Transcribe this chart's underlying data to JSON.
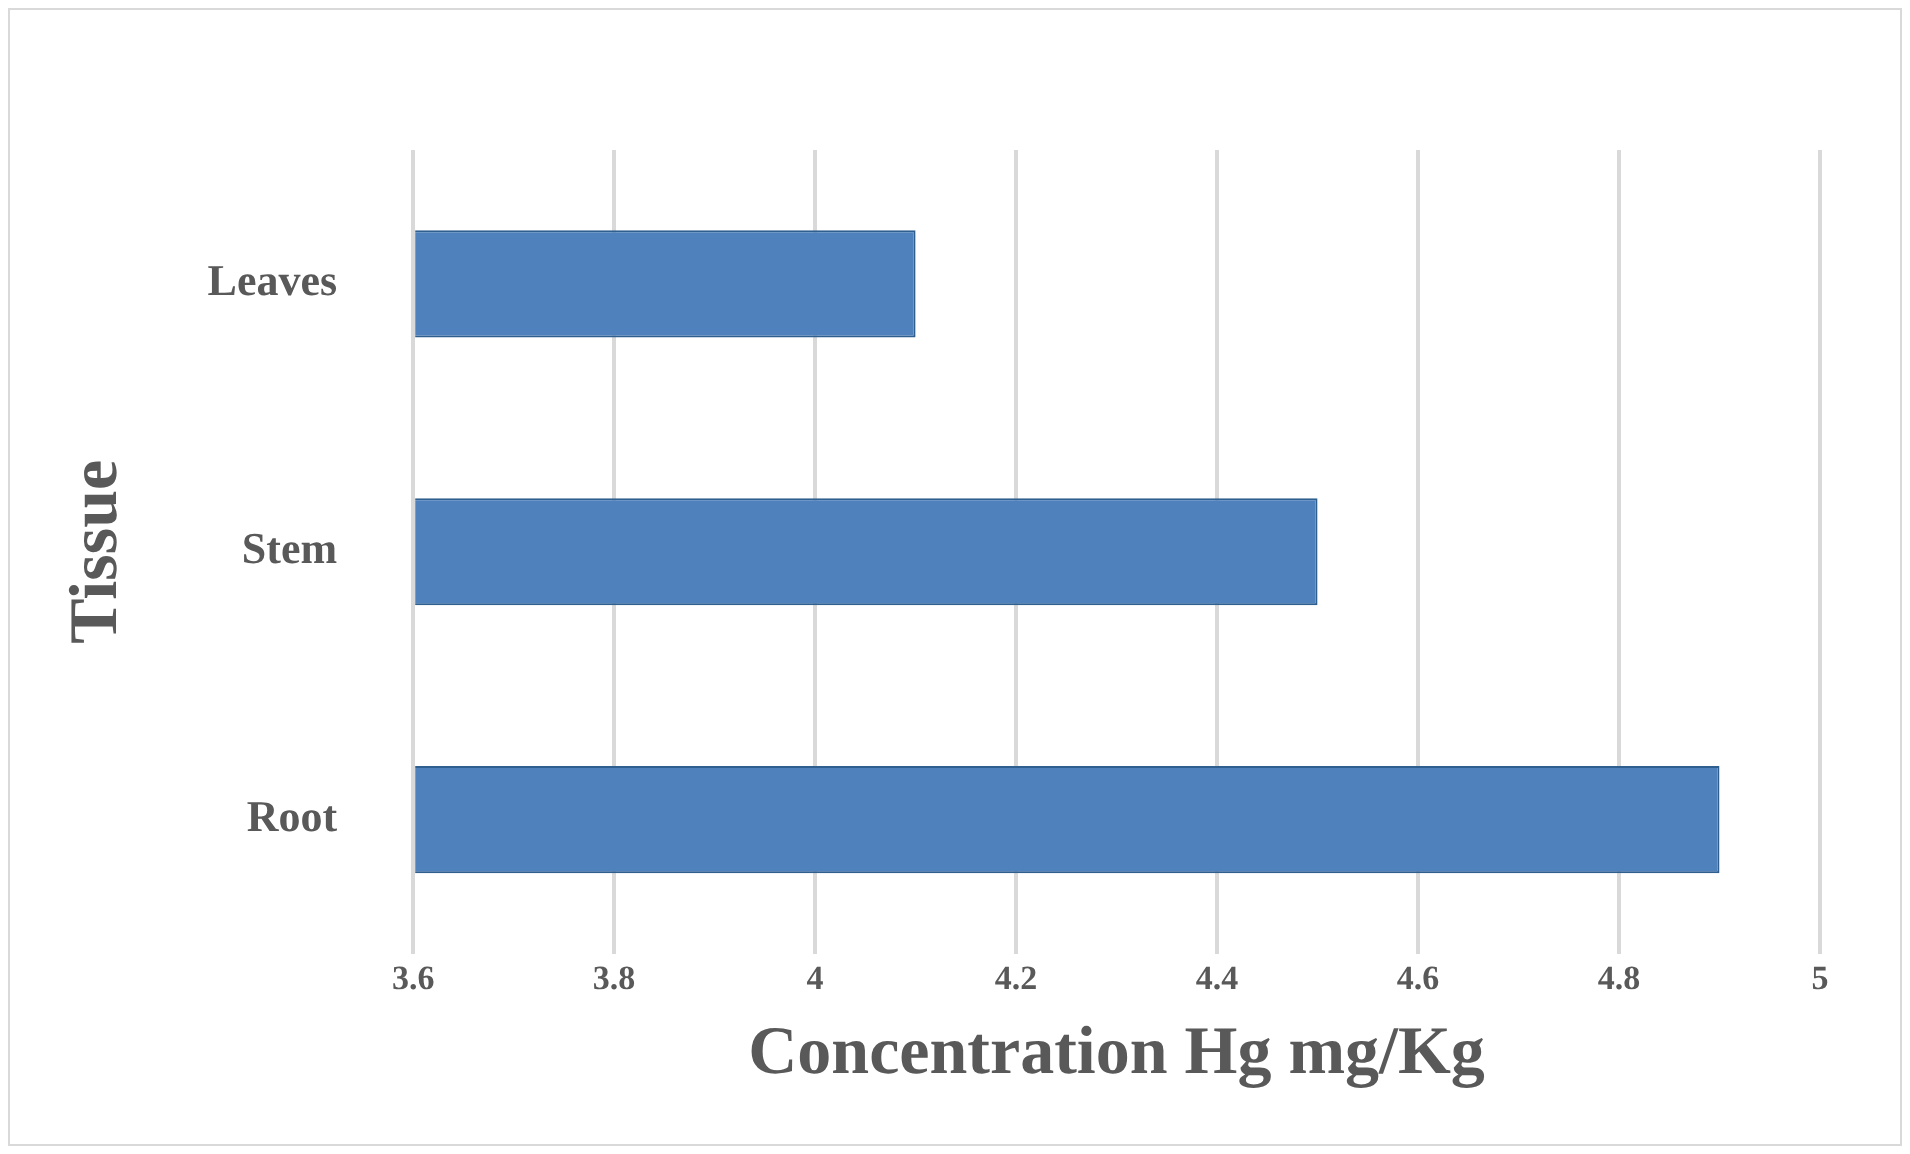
{
  "chart_data": {
    "type": "bar",
    "orientation": "horizontal",
    "xlabel": "Concentration Hg mg/Kg",
    "ylabel": "Tissue",
    "categories": [
      "Leaves",
      "Stem",
      "Root"
    ],
    "values": [
      4.1,
      4.5,
      4.9
    ],
    "color": "#4f81bd",
    "xlim": [
      3.6,
      5
    ],
    "xticks": [
      3.6,
      3.8,
      4,
      4.2,
      4.4,
      4.6,
      4.8,
      5
    ],
    "grid": "x",
    "legend": false
  }
}
